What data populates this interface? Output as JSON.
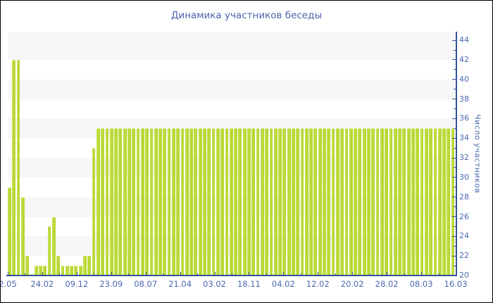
{
  "title": "Динамика участников беседы",
  "colors": {
    "bar": "#b9d835",
    "bar_highlight": "#d9eb8b",
    "axis_line": "#35539b",
    "label_text": "#4a67ad",
    "title_text": "#4a64a8",
    "band_gray": "#f6f6f6",
    "background": "#ffffff"
  },
  "chart_data": {
    "type": "bar",
    "title": "Динамика участников беседы",
    "ylabel": "Число участников",
    "xlabel": "",
    "ylim": [
      20,
      44.8
    ],
    "y_tick_step_labeled": 2,
    "y_tick_step_minor": 1,
    "y_tick_labels": [
      20,
      22,
      24,
      26,
      28,
      30,
      32,
      34,
      36,
      38,
      40,
      42,
      44
    ],
    "x_tick_labels": [
      "2.05",
      "24.02",
      "09.12",
      "23.09",
      "08.07",
      "21.04",
      "03.02",
      "18.11",
      "04.02",
      "12.02",
      "20.02",
      "28.02",
      "08.03",
      "16.03"
    ],
    "grid_bands_gray_value_ranges": [
      [
        22,
        24
      ],
      [
        26,
        28
      ],
      [
        30,
        32
      ],
      [
        34,
        36
      ],
      [
        38,
        40
      ],
      [
        42,
        44.8
      ]
    ],
    "legend": null,
    "values": [
      29,
      42,
      42,
      28,
      22,
      20,
      21,
      21,
      21,
      25,
      26,
      22,
      21,
      21,
      21,
      21,
      21,
      22,
      22,
      33,
      35,
      35,
      35,
      35,
      35,
      35,
      35,
      35,
      35,
      35,
      35,
      35,
      35,
      35,
      35,
      35,
      35,
      35,
      35,
      35,
      35,
      35,
      35,
      35,
      35,
      35,
      35,
      35,
      35,
      35,
      35,
      35,
      35,
      35,
      35,
      35,
      35,
      35,
      35,
      35,
      35,
      35,
      35,
      35,
      35,
      35,
      35,
      35,
      35,
      35,
      35,
      35,
      35,
      35,
      35,
      35,
      35,
      35,
      35,
      35,
      35,
      35,
      35,
      35,
      35,
      35,
      35,
      35,
      35,
      35,
      35,
      35,
      35,
      35,
      35,
      35,
      35,
      35,
      35,
      35,
      35
    ]
  }
}
